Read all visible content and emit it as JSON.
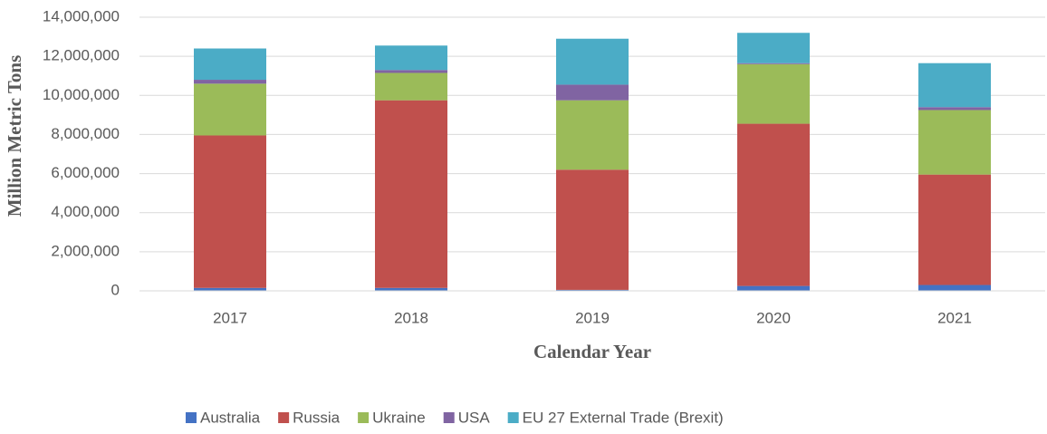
{
  "chart_data": {
    "type": "stacked_bar",
    "x_label": "Calendar Year",
    "y_label": "Million Metric Tons",
    "categories": [
      "2017",
      "2018",
      "2019",
      "2020",
      "2021"
    ],
    "series": [
      {
        "name": "Australia",
        "color": "#4472c4",
        "values": [
          150000,
          150000,
          50000,
          250000,
          300000
        ]
      },
      {
        "name": "Russia",
        "color": "#c0504d",
        "values": [
          7800000,
          9600000,
          6150000,
          8300000,
          5650000
        ]
      },
      {
        "name": "Ukraine",
        "color": "#9bbb59",
        "values": [
          2650000,
          1400000,
          3550000,
          3050000,
          3300000
        ]
      },
      {
        "name": "USA",
        "color": "#8064a2",
        "values": [
          200000,
          150000,
          800000,
          50000,
          150000
        ]
      },
      {
        "name": "EU 27 External Trade (Brexit)",
        "color": "#4bacc6",
        "values": [
          1600000,
          1250000,
          2350000,
          1550000,
          2250000
        ]
      }
    ],
    "ylim": [
      0,
      14000000
    ],
    "yticks": [
      0,
      {
        "value": 2000000,
        "label": "2,000,000"
      },
      {
        "value": 4000000,
        "label": "4,000,000"
      },
      {
        "value": 6000000,
        "label": "6,000,000"
      },
      {
        "value": 8000000,
        "label": "8,000,000"
      },
      {
        "value": 10000000,
        "label": "10,000,000"
      },
      {
        "value": 12000000,
        "label": "12,000,000"
      },
      {
        "value": 14000000,
        "label": "14,000,000"
      }
    ],
    "grid": true,
    "legend": "bottom"
  }
}
